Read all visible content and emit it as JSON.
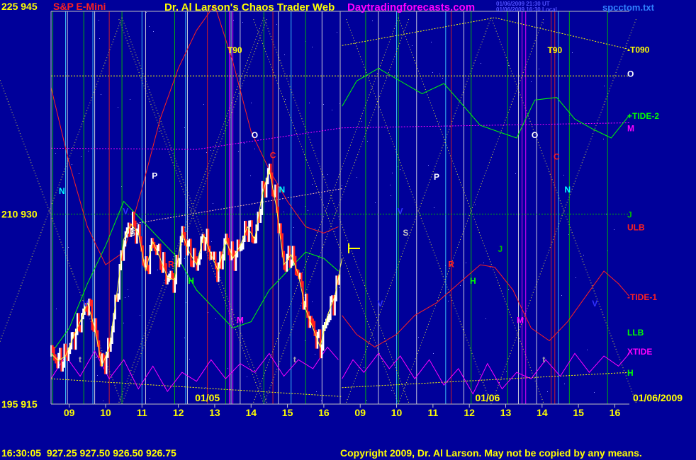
{
  "header": {
    "left_prices": "225  945",
    "symbol": "S&P E-Mini",
    "title": "Dr. Al Larson's Chaos Trader Web",
    "site": "Daytradingforecasts.com",
    "timestamp_ut": "01/06/2009 21:30 UT",
    "timestamp_local": "01/06/2009 16:30 Local",
    "file": "spcctom.txt"
  },
  "footer": {
    "quote": "16:30:05  927.25 927.50 926.50 926.75",
    "copyright": "Copyright 2009, Dr. Al Larson. May not be copied by any means."
  },
  "chart_data": {
    "type": "line",
    "y_left_labels": [
      {
        "value": 945,
        "label": "225  945"
      },
      {
        "value": 930,
        "label": "210  930"
      },
      {
        "value": 915,
        "label": "195  915"
      }
    ],
    "ylim": [
      915,
      946
    ],
    "x_hours": [
      {
        "label": "09",
        "x": 0.5
      },
      {
        "label": "10",
        "x": 1.5
      },
      {
        "label": "11",
        "x": 2.5
      },
      {
        "label": "12",
        "x": 3.5
      },
      {
        "label": "13",
        "x": 4.5
      },
      {
        "label": "14",
        "x": 5.5
      },
      {
        "label": "15",
        "x": 6.5
      },
      {
        "label": "16",
        "x": 7.5
      },
      {
        "label": "09",
        "x": 8.5
      },
      {
        "label": "10",
        "x": 9.5
      },
      {
        "label": "11",
        "x": 10.5
      },
      {
        "label": "12",
        "x": 11.5
      },
      {
        "label": "13",
        "x": 12.5
      },
      {
        "label": "14",
        "x": 13.5
      },
      {
        "label": "15",
        "x": 14.5
      },
      {
        "label": "16",
        "x": 15.5
      }
    ],
    "xlim": [
      0,
      15.9
    ],
    "date_labels": [
      {
        "label": "01/05",
        "x": 4.3
      },
      {
        "label": "01/06",
        "x": 12.0
      },
      {
        "label": "01/06/2009",
        "x": 16.5
      }
    ],
    "right_labels": [
      {
        "label": "-T090",
        "y": 943.0,
        "color": "#ffff00"
      },
      {
        "label": "O",
        "y": 941.1,
        "color": "#ffffff"
      },
      {
        "label": "+TIDE-2",
        "y": 937.8,
        "color": "#00ff00"
      },
      {
        "label": "M",
        "y": 936.8,
        "color": "#ff00ff"
      },
      {
        "label": "J",
        "y": 930.0,
        "color": "#00c000"
      },
      {
        "label": "ULB",
        "y": 929.0,
        "color": "#ff2020"
      },
      {
        "label": "-TIDE-1",
        "y": 923.5,
        "color": "#ff2020"
      },
      {
        "label": "LLB",
        "y": 920.7,
        "color": "#00ff00"
      },
      {
        "label": "XTIDE",
        "y": 919.2,
        "color": "#ff00ff"
      },
      {
        "label": "H",
        "y": 917.5,
        "color": "#00ff00"
      }
    ],
    "markers": [
      {
        "label": "N",
        "x": 0.3,
        "y": 931.6,
        "color": "#00ffff"
      },
      {
        "label": "V",
        "x": 0.95,
        "y": 922.7,
        "color": "#3030ff"
      },
      {
        "label": "t",
        "x": 0.8,
        "y": 918.3,
        "color": "#aaaaaa"
      },
      {
        "label": "S",
        "x": 2.25,
        "y": 928.3,
        "color": "#c0c0c0"
      },
      {
        "label": "V",
        "x": 2.05,
        "y": 930.0,
        "color": "#3030ff"
      },
      {
        "label": "P",
        "x": 2.85,
        "y": 932.8,
        "color": "#ffffff"
      },
      {
        "label": "R",
        "x": 3.3,
        "y": 925.8,
        "color": "#ff2020"
      },
      {
        "label": "H",
        "x": 3.85,
        "y": 924.5,
        "color": "#00ff00"
      },
      {
        "label": "T90",
        "x": 5.05,
        "y": 942.7,
        "color": "#ffff00"
      },
      {
        "label": "O",
        "x": 5.6,
        "y": 936.0,
        "color": "#ffffff"
      },
      {
        "label": "M",
        "x": 5.2,
        "y": 921.4,
        "color": "#ff00ff"
      },
      {
        "label": "C",
        "x": 6.1,
        "y": 934.4,
        "color": "#ff2020"
      },
      {
        "label": "N",
        "x": 6.35,
        "y": 931.7,
        "color": "#00ffff"
      },
      {
        "label": "t",
        "x": 6.7,
        "y": 918.3,
        "color": "#aaaaaa"
      },
      {
        "label": "V",
        "x": 9.6,
        "y": 930.0,
        "color": "#3030ff"
      },
      {
        "label": "S",
        "x": 9.75,
        "y": 928.3,
        "color": "#c0c0c0"
      },
      {
        "label": "V",
        "x": 9.05,
        "y": 922.7,
        "color": "#3030ff"
      },
      {
        "label": "P",
        "x": 10.6,
        "y": 932.7,
        "color": "#ffffff"
      },
      {
        "label": "R",
        "x": 11.0,
        "y": 925.8,
        "color": "#ff2020"
      },
      {
        "label": "H",
        "x": 11.6,
        "y": 924.5,
        "color": "#00ff00"
      },
      {
        "label": "J",
        "x": 12.35,
        "y": 927.0,
        "color": "#00c000"
      },
      {
        "label": "T90",
        "x": 13.85,
        "y": 942.7,
        "color": "#ffff00"
      },
      {
        "label": "O",
        "x": 13.3,
        "y": 936.0,
        "color": "#ffffff"
      },
      {
        "label": "C",
        "x": 13.9,
        "y": 934.3,
        "color": "#ff2020"
      },
      {
        "label": "M",
        "x": 12.9,
        "y": 921.4,
        "color": "#ff00ff"
      },
      {
        "label": "t",
        "x": 13.55,
        "y": 918.3,
        "color": "#aaaaaa"
      },
      {
        "label": "N",
        "x": 14.2,
        "y": 931.7,
        "color": "#00ffff"
      },
      {
        "label": "V",
        "x": 14.95,
        "y": 922.7,
        "color": "#3030ff"
      }
    ],
    "price_series": {
      "name": "",
      "x": [
        0,
        0.2,
        0.4,
        0.6,
        0.8,
        1.0,
        1.2,
        1.4,
        1.6,
        1.8,
        2.0,
        2.2,
        2.4,
        2.6,
        2.8,
        3.0,
        3.2,
        3.4,
        3.6,
        3.8,
        4.0,
        4.2,
        4.4,
        4.6,
        4.8,
        5.0,
        5.2,
        5.4,
        5.6,
        5.8,
        6.0,
        6.2,
        6.4,
        6.6,
        6.8,
        7.0,
        7.2,
        7.4,
        7.6,
        7.8,
        8.0
      ],
      "y": [
        919.0,
        918.4,
        918.8,
        920.2,
        921.5,
        923.0,
        921.0,
        918.0,
        919.5,
        923.5,
        928.0,
        929.2,
        928.5,
        925.5,
        927.8,
        926.5,
        925.0,
        924.8,
        928.5,
        927.0,
        926.0,
        928.3,
        926.8,
        925.5,
        928.0,
        926.5,
        927.5,
        929.0,
        928.0,
        931.5,
        933.5,
        930.5,
        926.0,
        926.8,
        925.2,
        922.5,
        921.0,
        919.5,
        922.0,
        923.5,
        926.5
      ]
    },
    "forecast_series": [
      {
        "name": "",
        "color": "#00ff00",
        "x": [
          8.0,
          8.4,
          9.0,
          9.6,
          10.2,
          10.8,
          11.2,
          11.8,
          12.3,
          12.8,
          13.3,
          13.9,
          14.4,
          14.9,
          15.4,
          15.9
        ],
        "y": [
          938.5,
          940.5,
          941.5,
          940.5,
          939.5,
          940.3,
          939.0,
          937.0,
          936.5,
          936.0,
          939.0,
          939.2,
          937.5,
          936.7,
          936.0,
          937.8
        ]
      },
      {
        "name": "",
        "color": "#ff2020",
        "x": [
          8.0,
          8.4,
          8.9,
          9.5,
          10.0,
          10.6,
          11.2,
          11.8,
          12.2,
          12.7,
          13.2,
          13.7,
          14.2,
          14.7,
          15.2,
          15.6,
          15.9
        ],
        "y": [
          922.0,
          920.5,
          919.5,
          920.5,
          922.0,
          923.0,
          924.5,
          926.0,
          925.8,
          924.0,
          921.0,
          920.0,
          921.5,
          923.5,
          925.5,
          924.5,
          923.5
        ]
      },
      {
        "name": "",
        "color": "#ff00ff",
        "x": [
          8.0,
          8.3,
          8.6,
          9.0,
          9.3,
          9.6,
          10.0,
          10.4,
          10.8,
          11.2,
          11.6,
          12.0,
          12.4,
          12.8,
          13.2,
          13.6,
          14.0,
          14.4,
          14.8,
          15.2,
          15.6,
          15.9
        ],
        "y": [
          917.0,
          918.5,
          917.5,
          919.0,
          917.8,
          918.8,
          917.0,
          918.5,
          916.5,
          917.8,
          915.8,
          918.2,
          916.2,
          917.5,
          917.0,
          918.5,
          917.2,
          919.0,
          917.5,
          918.8,
          918.0,
          919.0
        ]
      }
    ],
    "history_series": [
      {
        "name": "",
        "color": "#00ff00",
        "x": [
          0,
          0.5,
          1.0,
          1.5,
          2.0,
          2.5,
          3.0,
          3.5,
          4.0,
          4.5,
          5.0,
          5.5,
          6.0,
          6.5,
          7.0,
          7.5,
          7.9
        ],
        "y": [
          919.0,
          921.0,
          924.5,
          927.5,
          931.0,
          929.5,
          928.0,
          926.5,
          924.0,
          922.5,
          921.0,
          921.5,
          924.0,
          925.5,
          927.0,
          926.5,
          925.5
        ]
      },
      {
        "name": "",
        "color": "#ff2020",
        "x": [
          0,
          0.5,
          1.0,
          1.5,
          2.0,
          2.5,
          3.0,
          3.5,
          4.0,
          4.5,
          5.0,
          5.5,
          6.0,
          6.5,
          7.0,
          7.5,
          7.9
        ],
        "y": [
          940.0,
          934.0,
          929.0,
          926.0,
          927.0,
          932.0,
          937.5,
          941.5,
          944.5,
          946.5,
          942.0,
          936.5,
          933.5,
          931.0,
          929.0,
          928.5,
          929.0
        ]
      },
      {
        "name": "",
        "color": "#ff00ff",
        "x": [
          0,
          0.4,
          0.8,
          1.2,
          1.6,
          2.0,
          2.4,
          2.8,
          3.2,
          3.6,
          4.0,
          4.4,
          4.8,
          5.2,
          5.6,
          6.0,
          6.4,
          6.8,
          7.2,
          7.6,
          7.9
        ],
        "y": [
          917.0,
          918.8,
          917.2,
          919.2,
          917.0,
          918.5,
          916.2,
          918.0,
          916.0,
          917.5,
          916.8,
          918.5,
          917.0,
          918.2,
          917.5,
          919.0,
          917.2,
          918.5,
          917.8,
          919.5,
          918.5
        ]
      }
    ],
    "bands": [
      {
        "name": "",
        "color": "#ffff00",
        "x": [
          8.0,
          12.2,
          15.9
        ],
        "y": [
          943.3,
          945.5,
          943.0
        ]
      },
      {
        "name": "",
        "color": "#ff00ff",
        "x": [
          0,
          4.0,
          8.0,
          15.9
        ],
        "y": [
          935.2,
          935.1,
          936.8,
          937.2
        ]
      },
      {
        "name": "",
        "color": "#00c000",
        "x": [
          0,
          15.9
        ],
        "y": [
          930.0,
          930.0
        ]
      },
      {
        "name": "",
        "color": "#ffff00",
        "x": [
          0,
          15.9
        ],
        "y": [
          940.9,
          940.9
        ]
      },
      {
        "name": "",
        "color": "#ffff00",
        "x": [
          8.0,
          15.9
        ],
        "y": [
          916.3,
          917.5
        ]
      },
      {
        "name": "",
        "color": "#ffff00",
        "x": [
          0,
          8.0
        ],
        "y": [
          917.0,
          915.6
        ]
      },
      {
        "name": "",
        "color": "#ffc0a0",
        "x": [
          2.2,
          8.0
        ],
        "y": [
          929.2,
          932.0
        ]
      }
    ],
    "vertical_lines": {
      "green": [
        0.05,
        0.9,
        1.95,
        3.4,
        4.8,
        5.85,
        7.0,
        8.65,
        9.55,
        11.55,
        12.55,
        14.25,
        15.3
      ],
      "white": [
        0.45,
        1.2,
        2.6,
        3.75,
        4.95,
        5.2,
        6.25,
        7.45,
        9.0,
        10.05,
        11.35,
        12.85,
        13.35
      ],
      "cyan": [
        0.4,
        1.15,
        2.5,
        3.7,
        6.6,
        9.5,
        10.85,
        13.95
      ],
      "red": [
        1.6,
        4.3,
        6.1,
        11.0,
        13.75,
        13.85
      ],
      "magenta": [
        4.9,
        5.0,
        12.95,
        13.05
      ]
    }
  }
}
